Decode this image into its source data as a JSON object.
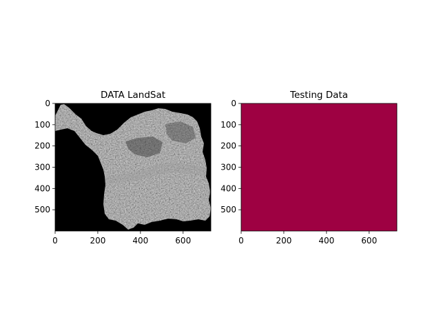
{
  "figure": {
    "background": "#ffffff"
  },
  "chart_data": [
    {
      "type": "heatmap",
      "title": "DATA LandSat",
      "xlabel": "",
      "ylabel": "",
      "xlim": [
        0,
        730
      ],
      "ylim": [
        600,
        0
      ],
      "xticks": [
        0,
        200,
        400,
        600
      ],
      "yticks": [
        0,
        100,
        200,
        300,
        400,
        500
      ],
      "colormap": "gray",
      "background_value_color": "#000000",
      "grid": false,
      "description_visible": "grayscale satellite raster of a land region on black background"
    },
    {
      "type": "heatmap",
      "title": "Testing Data",
      "xlabel": "",
      "ylabel": "",
      "xlim": [
        0,
        730
      ],
      "ylim": [
        600,
        0
      ],
      "xticks": [
        0,
        200,
        400,
        600
      ],
      "yticks": [
        0,
        100,
        200,
        300,
        400,
        500
      ],
      "colormap": "Spectral",
      "fill_color": "#9e0142",
      "grid": false
    }
  ]
}
